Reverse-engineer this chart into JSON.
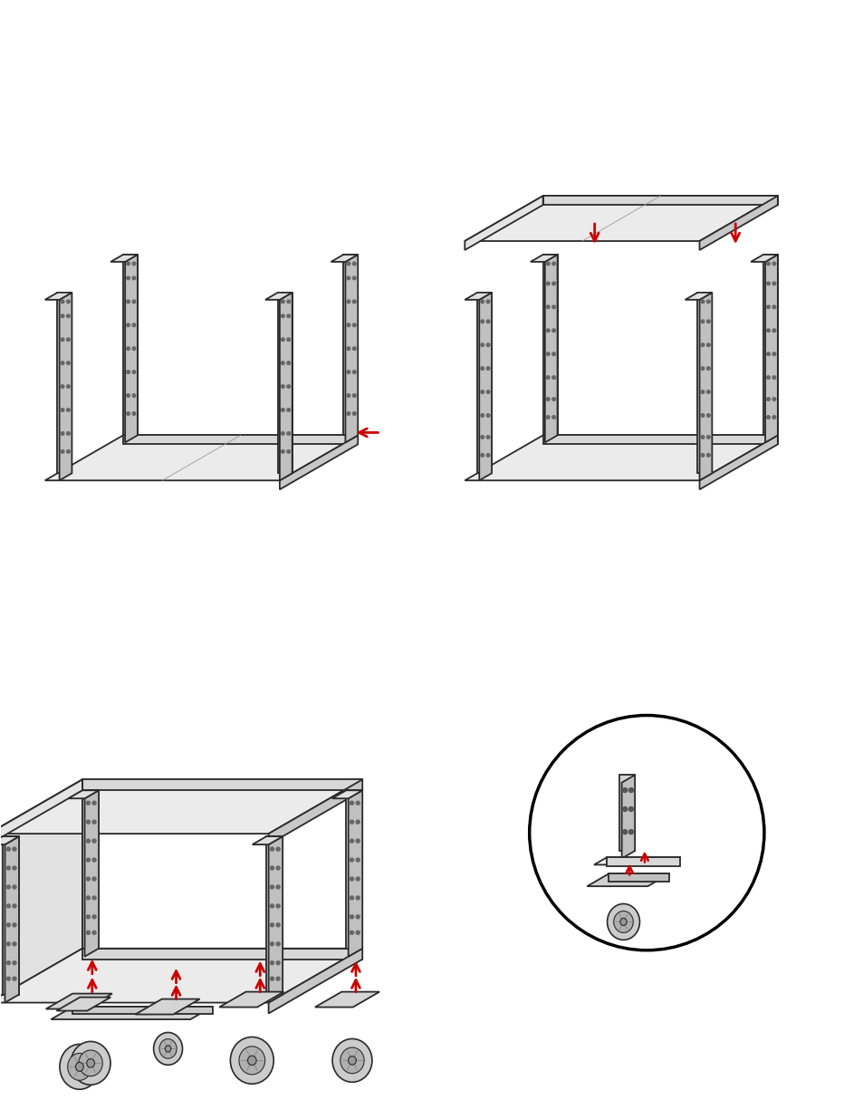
{
  "bg_color": "#ffffff",
  "line_color": "#2a2a2a",
  "line_width": 1.3,
  "red_color": "#cc0000",
  "figure_width": 9.54,
  "figure_height": 12.35,
  "dpi": 100,
  "face_top": "#ebebeb",
  "face_front": "#d8d8d8",
  "face_right": "#c8c8c8",
  "face_left": "#e4e4e4",
  "post_front": "#d5d5d5",
  "post_right": "#c0c0c0",
  "post_top": "#e0e0e0"
}
